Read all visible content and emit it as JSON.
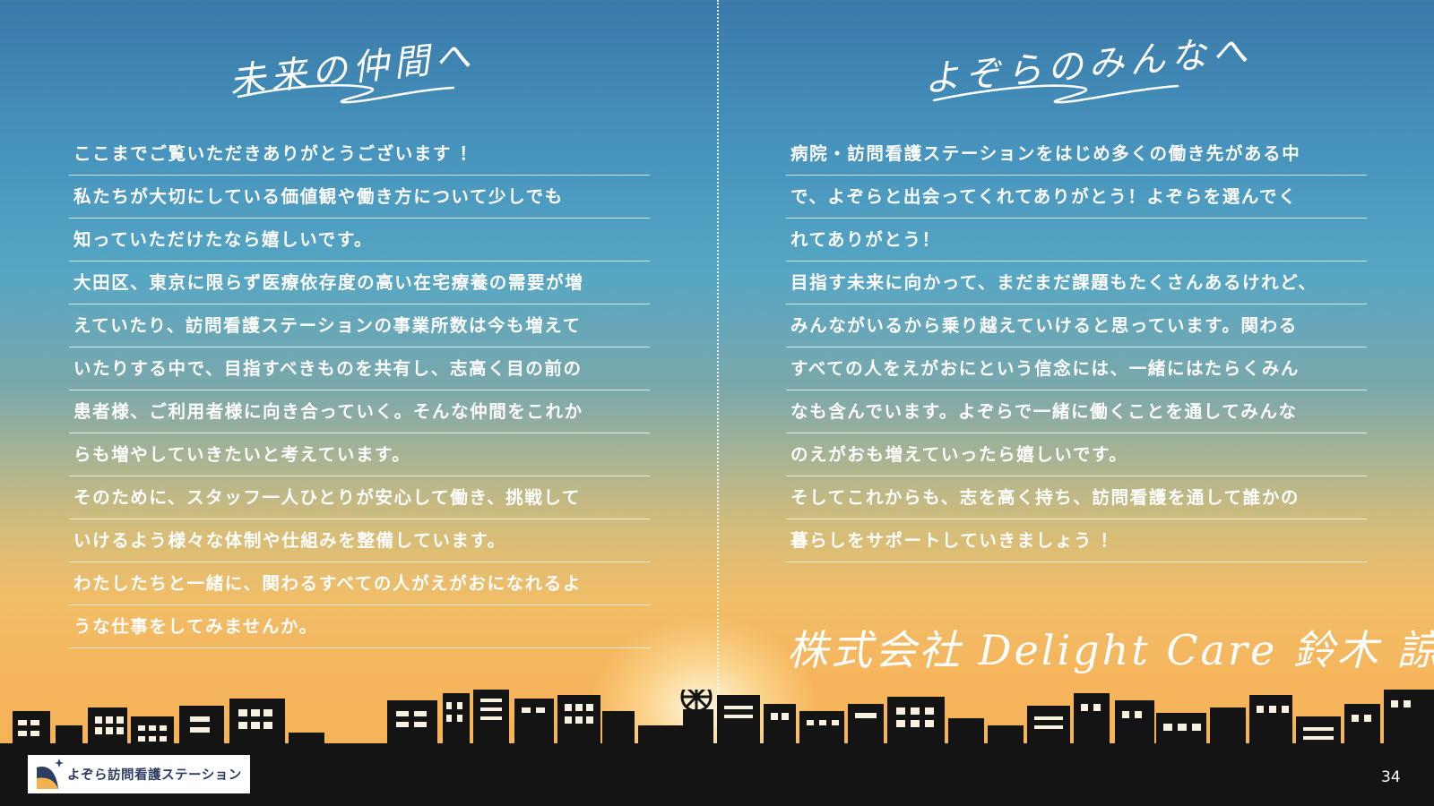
{
  "left": {
    "heading": "未来の仲間へ",
    "lines": [
      "ここまでご覧いただきありがとうございます ！",
      "私たちが大切にしている価値観や働き方について少しでも",
      "知っていただけたなら嬉しいです。",
      "大田区、東京に限らず医療依存度の高い在宅療養の需要が増",
      "えていたり、訪問看護ステーションの事業所数は今も増えて",
      "いたりする中で、目指すべきものを共有し、志高く目の前の",
      "患者様、ご利用者様に向き合っていく。そんな仲間をこれか",
      "らも増やしていきたいと考えています。",
      "そのために、スタッフ一人ひとりが安心して働き、挑戦して",
      "いけるよう様々な体制や仕組みを整備しています。",
      "わたしたちと一緒に、関わるすべての人がえがおになれるよ",
      "うな仕事をしてみませんか。"
    ]
  },
  "right": {
    "heading": "よぞらのみんなへ",
    "lines": [
      "病院・訪問看護ステーションをはじめ多くの働き先がある中",
      "で、よぞらと出会ってくれてありがとう！よぞらを選んでく",
      "れてありがとう！",
      "目指す未来に向かって、まだまだ課題もたくさんあるけれど、",
      "みんながいるから乗り越えていけると思っています。関わる",
      "すべての人をえがおにという信念には、一緒にはたらくみん",
      "なも含んでいます。よぞらで一緒に働くことを通してみんな",
      "のえがおも増えていったら嬉しいです。",
      "そしてこれからも、志を高く持ち、訪問看護を通して誰かの",
      "暮らしをサポートしていきましょう ！"
    ],
    "signature": "株式会社 Delight Care 鈴木 諒平"
  },
  "logo": {
    "text": "よぞら訪問看護ステーション"
  },
  "page_number": "34",
  "colors": {
    "sky_top": "#3a79a9",
    "sky_bottom": "#f7b258",
    "silhouette": "#141414",
    "logo_text": "#2c3c63"
  }
}
